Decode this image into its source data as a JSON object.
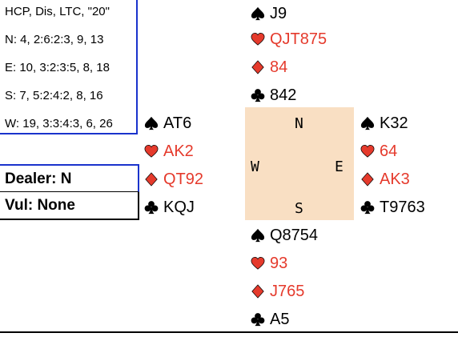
{
  "info": {
    "header": "HCP, Dis, LTC, \"20\"",
    "north": "N: 4, 2:6:2:3, 9, 13",
    "east": "E: 10, 3:2:3:5, 8, 18",
    "south": "S: 7, 5:2:4:2, 8, 16",
    "west": "W: 19, 3:3:4:3, 6, 26"
  },
  "dealer": "Dealer: N",
  "vul": "Vul: None",
  "colors": {
    "red": "#e53a2c",
    "black": "#000000",
    "compass_bg": "#f9dfc3",
    "box_border": "#1a33cc"
  },
  "hands": {
    "north": {
      "spades": "J9",
      "hearts": "QJT875",
      "diamonds": "84",
      "clubs": "842"
    },
    "west": {
      "spades": "AT6",
      "hearts": "AK2",
      "diamonds": "QT92",
      "clubs": "KQJ"
    },
    "east": {
      "spades": "K32",
      "hearts": "64",
      "diamonds": "AK3",
      "clubs": "T9763"
    },
    "south": {
      "spades": "Q8754",
      "hearts": "93",
      "diamonds": "J765",
      "clubs": "A5"
    }
  },
  "compass": {
    "n": "N",
    "e": "E",
    "s": "S",
    "w": "W"
  },
  "suit_icons": {
    "spades": "spade-icon",
    "hearts": "heart-icon",
    "diamonds": "diamond-icon",
    "clubs": "club-icon"
  }
}
